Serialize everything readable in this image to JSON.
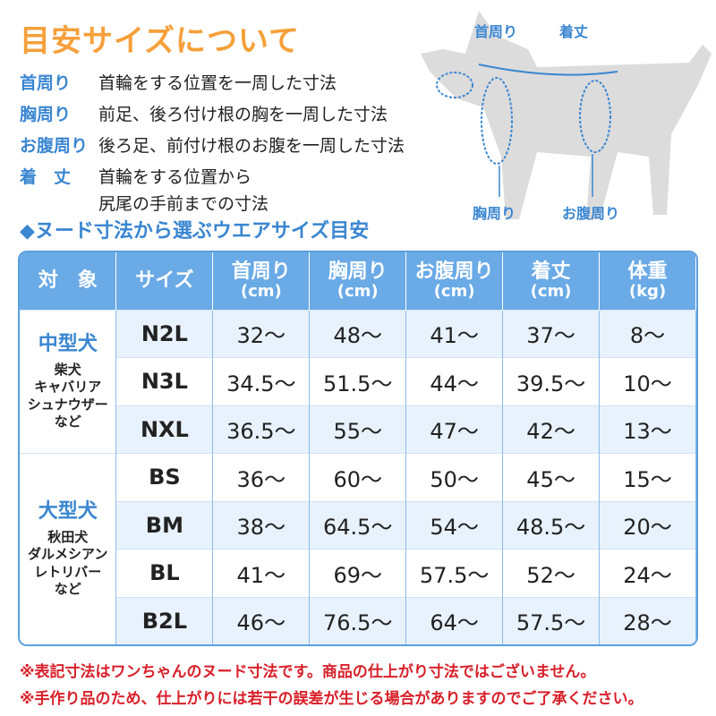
{
  "title": "目安サイズについて",
  "definitions": [
    {
      "term": "首周り",
      "desc": "首輪をする位置を一周した寸法"
    },
    {
      "term": "胸周り",
      "desc": "前足、後ろ付け根の胸を一周した寸法"
    },
    {
      "term": "お腹周り",
      "desc": "後ろ足、前付け根のお腹を一周した寸法"
    },
    {
      "term": "着　丈",
      "desc": "首輪をする位置から",
      "desc2": "尻尾の手前までの寸法"
    }
  ],
  "diagram": {
    "neck": "首周り",
    "length": "着丈",
    "chest": "胸周り",
    "belly": "お腹周り"
  },
  "subtitle": "◆ヌード寸法から選ぶウエアサイズ目安",
  "table": {
    "headers": [
      {
        "label": "対　象"
      },
      {
        "label": "サイズ"
      },
      {
        "label": "首周り",
        "unit": "(cm)"
      },
      {
        "label": "胸周り",
        "unit": "(cm)"
      },
      {
        "label": "お腹周り",
        "unit": "(cm)"
      },
      {
        "label": "着丈",
        "unit": "(cm)"
      },
      {
        "label": "体重",
        "unit": "(kg)"
      }
    ],
    "groups": [
      {
        "name": "中型犬",
        "examples": "柴犬\nキャバリア\nシュナウザー\nなど",
        "rows": [
          [
            "N2L",
            "32〜",
            "48〜",
            "41〜",
            "37〜",
            "8〜"
          ],
          [
            "N3L",
            "34.5〜",
            "51.5〜",
            "44〜",
            "39.5〜",
            "10〜"
          ],
          [
            "NXL",
            "36.5〜",
            "55〜",
            "47〜",
            "42〜",
            "13〜"
          ]
        ]
      },
      {
        "name": "大型犬",
        "examples": "秋田犬\nダルメシアン\nレトリバー\nなど",
        "rows": [
          [
            "BS",
            "36〜",
            "60〜",
            "50〜",
            "45〜",
            "15〜"
          ],
          [
            "BM",
            "38〜",
            "64.5〜",
            "54〜",
            "48.5〜",
            "20〜"
          ],
          [
            "BL",
            "41〜",
            "69〜",
            "57.5〜",
            "52〜",
            "24〜"
          ],
          [
            "B2L",
            "46〜",
            "76.5〜",
            "64〜",
            "57.5〜",
            "28〜"
          ]
        ]
      }
    ]
  },
  "notes": [
    "※表記寸法はワンちゃんのヌード寸法です。商品の仕上がり寸法ではございません。",
    "※手作り品のため、仕上がりには若干の誤差が生じる場合がありますのでご了承ください。"
  ],
  "colors": {
    "title": "#f5a03a",
    "accent": "#3a86d1",
    "header": "#6aaae6",
    "note": "#d8202a"
  }
}
